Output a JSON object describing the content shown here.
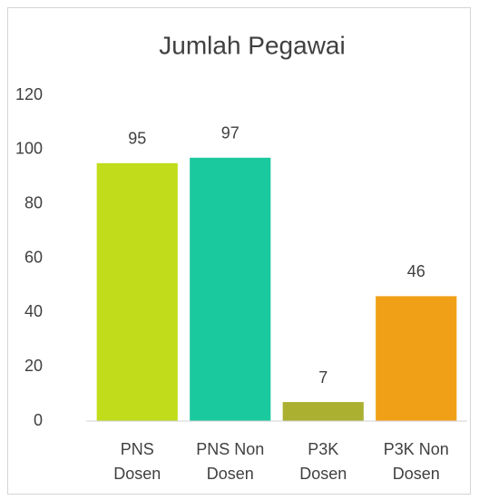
{
  "chart_data": {
    "type": "bar",
    "title": "Jumlah Pegawai",
    "categories": [
      "PNS Dosen",
      "PNS Non Dosen",
      "P3K Dosen",
      "P3K Non Dosen"
    ],
    "values": [
      95,
      97,
      7,
      46
    ],
    "colors": [
      "#c1dc1a",
      "#1bc99f",
      "#abb030",
      "#f0a017"
    ],
    "ylim": [
      0,
      120
    ],
    "yticks": [
      0,
      20,
      40,
      60,
      80,
      100,
      120
    ],
    "grid": false
  }
}
